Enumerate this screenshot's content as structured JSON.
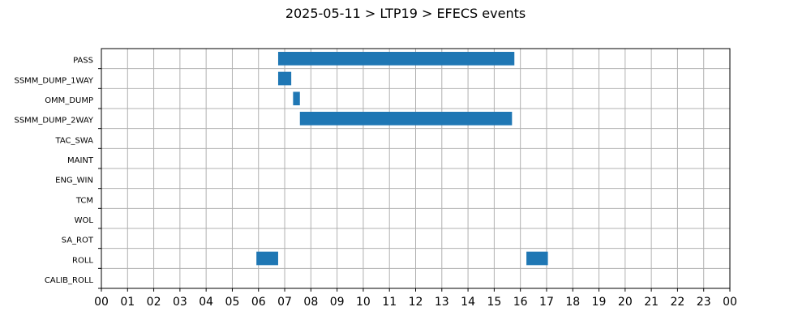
{
  "chart_data": {
    "type": "bar",
    "orientation": "horizontal-timeline",
    "title": "2025-05-11 > LTP19 > EFECS events",
    "xlabel": "",
    "ylabel": "",
    "grid": true,
    "xlim": [
      0,
      24
    ],
    "x_unit": "hours",
    "x_tick_labels": [
      "00",
      "01",
      "02",
      "03",
      "04",
      "05",
      "06",
      "07",
      "08",
      "09",
      "10",
      "11",
      "12",
      "13",
      "14",
      "15",
      "16",
      "17",
      "18",
      "19",
      "20",
      "21",
      "22",
      "23",
      "00"
    ],
    "categories": [
      "PASS",
      "SSMM_DUMP_1WAY",
      "OMM_DUMP",
      "SSMM_DUMP_2WAY",
      "TAC_SWA",
      "MAINT",
      "ENG_WIN",
      "TCM",
      "WOL",
      "SA_ROT",
      "ROLL",
      "CALIB_ROLL"
    ],
    "bar_color": "#1f77b4",
    "events": [
      {
        "category": "PASS",
        "start": 6.75,
        "end": 15.77
      },
      {
        "category": "SSMM_DUMP_1WAY",
        "start": 6.75,
        "end": 7.25
      },
      {
        "category": "OMM_DUMP",
        "start": 7.32,
        "end": 7.58
      },
      {
        "category": "SSMM_DUMP_2WAY",
        "start": 7.58,
        "end": 15.68
      },
      {
        "category": "ROLL",
        "start": 5.92,
        "end": 6.75
      },
      {
        "category": "ROLL",
        "start": 16.23,
        "end": 17.05
      }
    ]
  }
}
